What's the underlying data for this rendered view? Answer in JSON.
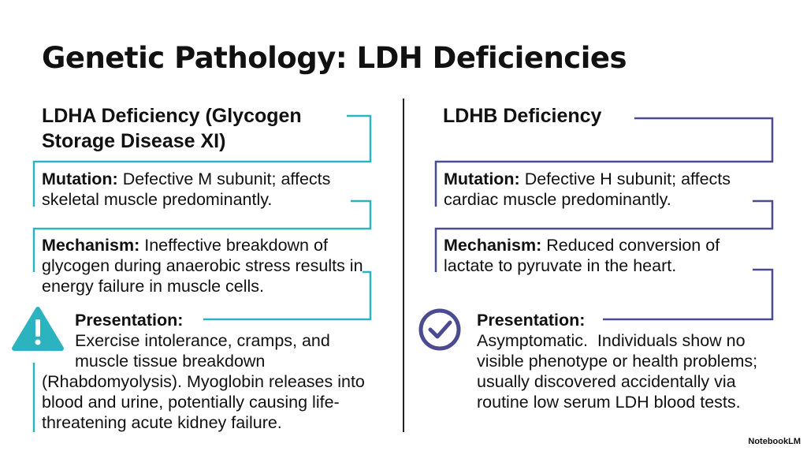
{
  "title": "Genetic Pathology: LDH Deficiencies",
  "left": {
    "heading": "LDHA Deficiency (Glycogen Storage Disease XI)",
    "mutation": {
      "label": "Mutation:",
      "text": "Defective M subunit; affects skeletal muscle predominantly."
    },
    "mechanism": {
      "label": "Mechanism:",
      "text": "Ineffective breakdown of glycogen during anaerobic stress results in energy failure in muscle cells."
    },
    "presentation": {
      "label": "Presentation:",
      "text": "Exercise intolerance, cramps, and muscle tissue breakdown (Rhabdomyolysis). Myoglobin releases into blood and urine, potentially causing life-threatening acute kidney failure."
    }
  },
  "right": {
    "heading": "LDHB Deficiency",
    "mutation": {
      "label": "Mutation:",
      "text": "Defective H subunit; affects cardiac muscle predominantly."
    },
    "mechanism": {
      "label": "Mechanism:",
      "text": "Reduced conversion of lactate to pyruvate in the heart."
    },
    "presentation": {
      "label": "Presentation:",
      "text": "Asymptomatic.  Individuals show no visible phenotype or health problems; usually discovered accidentally via routine low serum LDH blood tests."
    }
  },
  "footer": "NotebookLM"
}
